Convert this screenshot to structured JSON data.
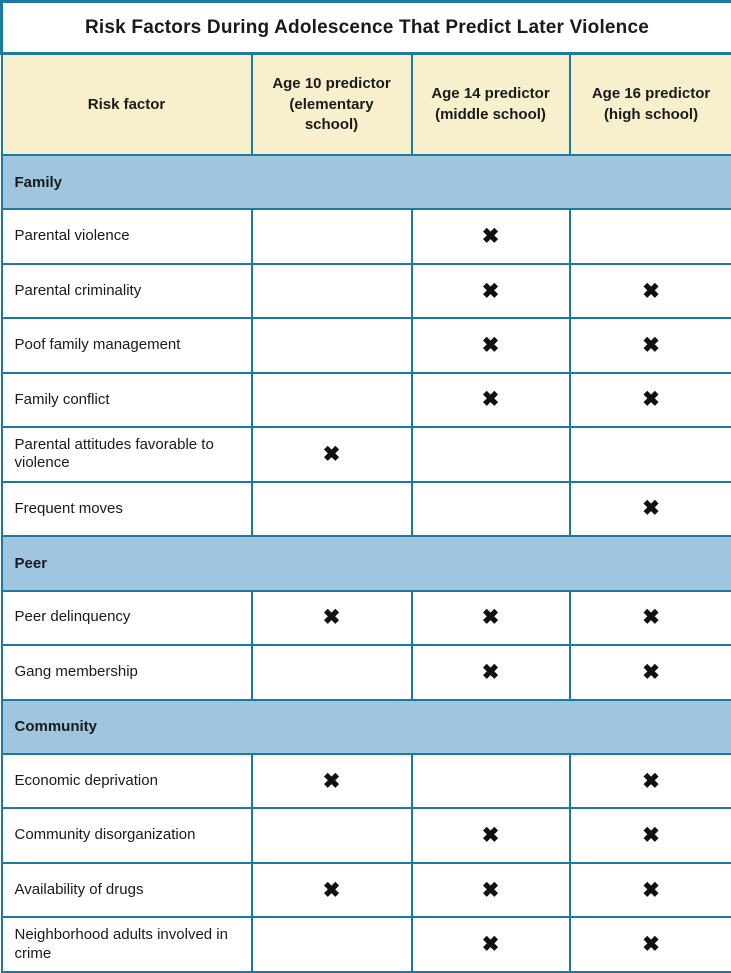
{
  "chart_data": {
    "type": "table",
    "title": "Risk Factors During Adolescence That Predict Later Violence",
    "mark_glyph": "✖",
    "columns": [
      "Risk factor",
      "Age 10 predictor (elementary school)",
      "Age 14 predictor (middle school)",
      "Age 16 predictor (high school)"
    ],
    "col0": "Risk factor",
    "col1": "Age 10 predictor (elementary school)",
    "col2": "Age 14 predictor (middle school)",
    "col3": "Age 16 predictor (high school)",
    "sections": [
      {
        "name": "Family",
        "rows": [
          {
            "label": "Parental violence",
            "marks": [
              false,
              true,
              false
            ]
          },
          {
            "label": "Parental criminality",
            "marks": [
              false,
              true,
              true
            ]
          },
          {
            "label": "Poof family management",
            "marks": [
              false,
              true,
              true
            ]
          },
          {
            "label": "Family conflict",
            "marks": [
              false,
              true,
              true
            ]
          },
          {
            "label": "Parental attitudes favorable to violence",
            "marks": [
              true,
              false,
              false
            ]
          },
          {
            "label": "Frequent moves",
            "marks": [
              false,
              false,
              true
            ]
          }
        ]
      },
      {
        "name": "Peer",
        "rows": [
          {
            "label": "Peer delinquency",
            "marks": [
              true,
              true,
              true
            ]
          },
          {
            "label": "Gang membership",
            "marks": [
              false,
              true,
              true
            ]
          }
        ]
      },
      {
        "name": "Community",
        "rows": [
          {
            "label": "Economic deprivation",
            "marks": [
              true,
              false,
              true
            ]
          },
          {
            "label": "Community disorganization",
            "marks": [
              false,
              true,
              true
            ]
          },
          {
            "label": "Availability of drugs",
            "marks": [
              true,
              true,
              true
            ]
          },
          {
            "label": "Neighborhood adults involved in crime",
            "marks": [
              false,
              true,
              true
            ]
          }
        ]
      }
    ],
    "colors": {
      "border_teal": "#1b7a9e",
      "header_cream": "#f8efcc",
      "section_blue": "#9fc6de",
      "text_black": "#1a1a1a"
    }
  }
}
